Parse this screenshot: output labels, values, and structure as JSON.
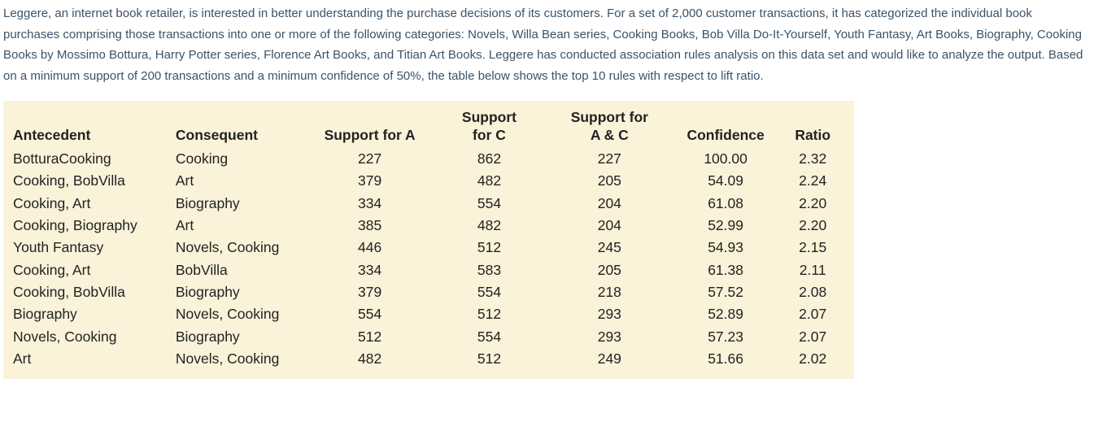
{
  "intro": "Leggere, an internet book retailer, is interested in better understanding the purchase decisions of its customers. For a set of 2,000 customer transactions, it has categorized the individual book purchases comprising those transactions into one or more of the following categories: Novels, Willa Bean series, Cooking Books, Bob Villa Do-It-Yourself, Youth Fantasy, Art Books, Biography, Cooking Books by Mossimo Bottura, Harry Potter series, Florence Art Books, and Titian Art Books. Leggere has conducted association rules analysis on this data set and would like to analyze the output. Based on a minimum support of 200 transactions and a minimum confidence of 50%, the table below shows the top 10 rules with respect to lift ratio.",
  "table": {
    "type": "table",
    "background_color": "#faf2d9",
    "text_color": "#222222",
    "font_size": 17.5,
    "columns": [
      {
        "label_line1": "",
        "label_line2": "Antecedent",
        "align": "left"
      },
      {
        "label_line1": "",
        "label_line2": "Consequent",
        "align": "left"
      },
      {
        "label_line1": "",
        "label_line2": "Support for A",
        "align": "center"
      },
      {
        "label_line1": "Support",
        "label_line2": "for C",
        "align": "center"
      },
      {
        "label_line1": "Support for",
        "label_line2": "A & C",
        "align": "center"
      },
      {
        "label_line1": "",
        "label_line2": "Confidence",
        "align": "center"
      },
      {
        "label_line1": "",
        "label_line2": "Ratio",
        "align": "center"
      }
    ],
    "rows": [
      [
        "BotturaCooking",
        "Cooking",
        "227",
        "862",
        "227",
        "100.00",
        "2.32"
      ],
      [
        "Cooking, BobVilla",
        "Art",
        "379",
        "482",
        "205",
        "54.09",
        "2.24"
      ],
      [
        "Cooking, Art",
        "Biography",
        "334",
        "554",
        "204",
        "61.08",
        "2.20"
      ],
      [
        "Cooking, Biography",
        "Art",
        "385",
        "482",
        "204",
        "52.99",
        "2.20"
      ],
      [
        "Youth Fantasy",
        "Novels, Cooking",
        "446",
        "512",
        "245",
        "54.93",
        "2.15"
      ],
      [
        "Cooking, Art",
        "BobVilla",
        "334",
        "583",
        "205",
        "61.38",
        "2.11"
      ],
      [
        "Cooking, BobVilla",
        "Biography",
        "379",
        "554",
        "218",
        "57.52",
        "2.08"
      ],
      [
        "Biography",
        "Novels, Cooking",
        "554",
        "512",
        "293",
        "52.89",
        "2.07"
      ],
      [
        "Novels, Cooking",
        "Biography",
        "512",
        "554",
        "293",
        "57.23",
        "2.07"
      ],
      [
        "Art",
        "Novels, Cooking",
        "482",
        "512",
        "249",
        "51.66",
        "2.02"
      ]
    ]
  }
}
